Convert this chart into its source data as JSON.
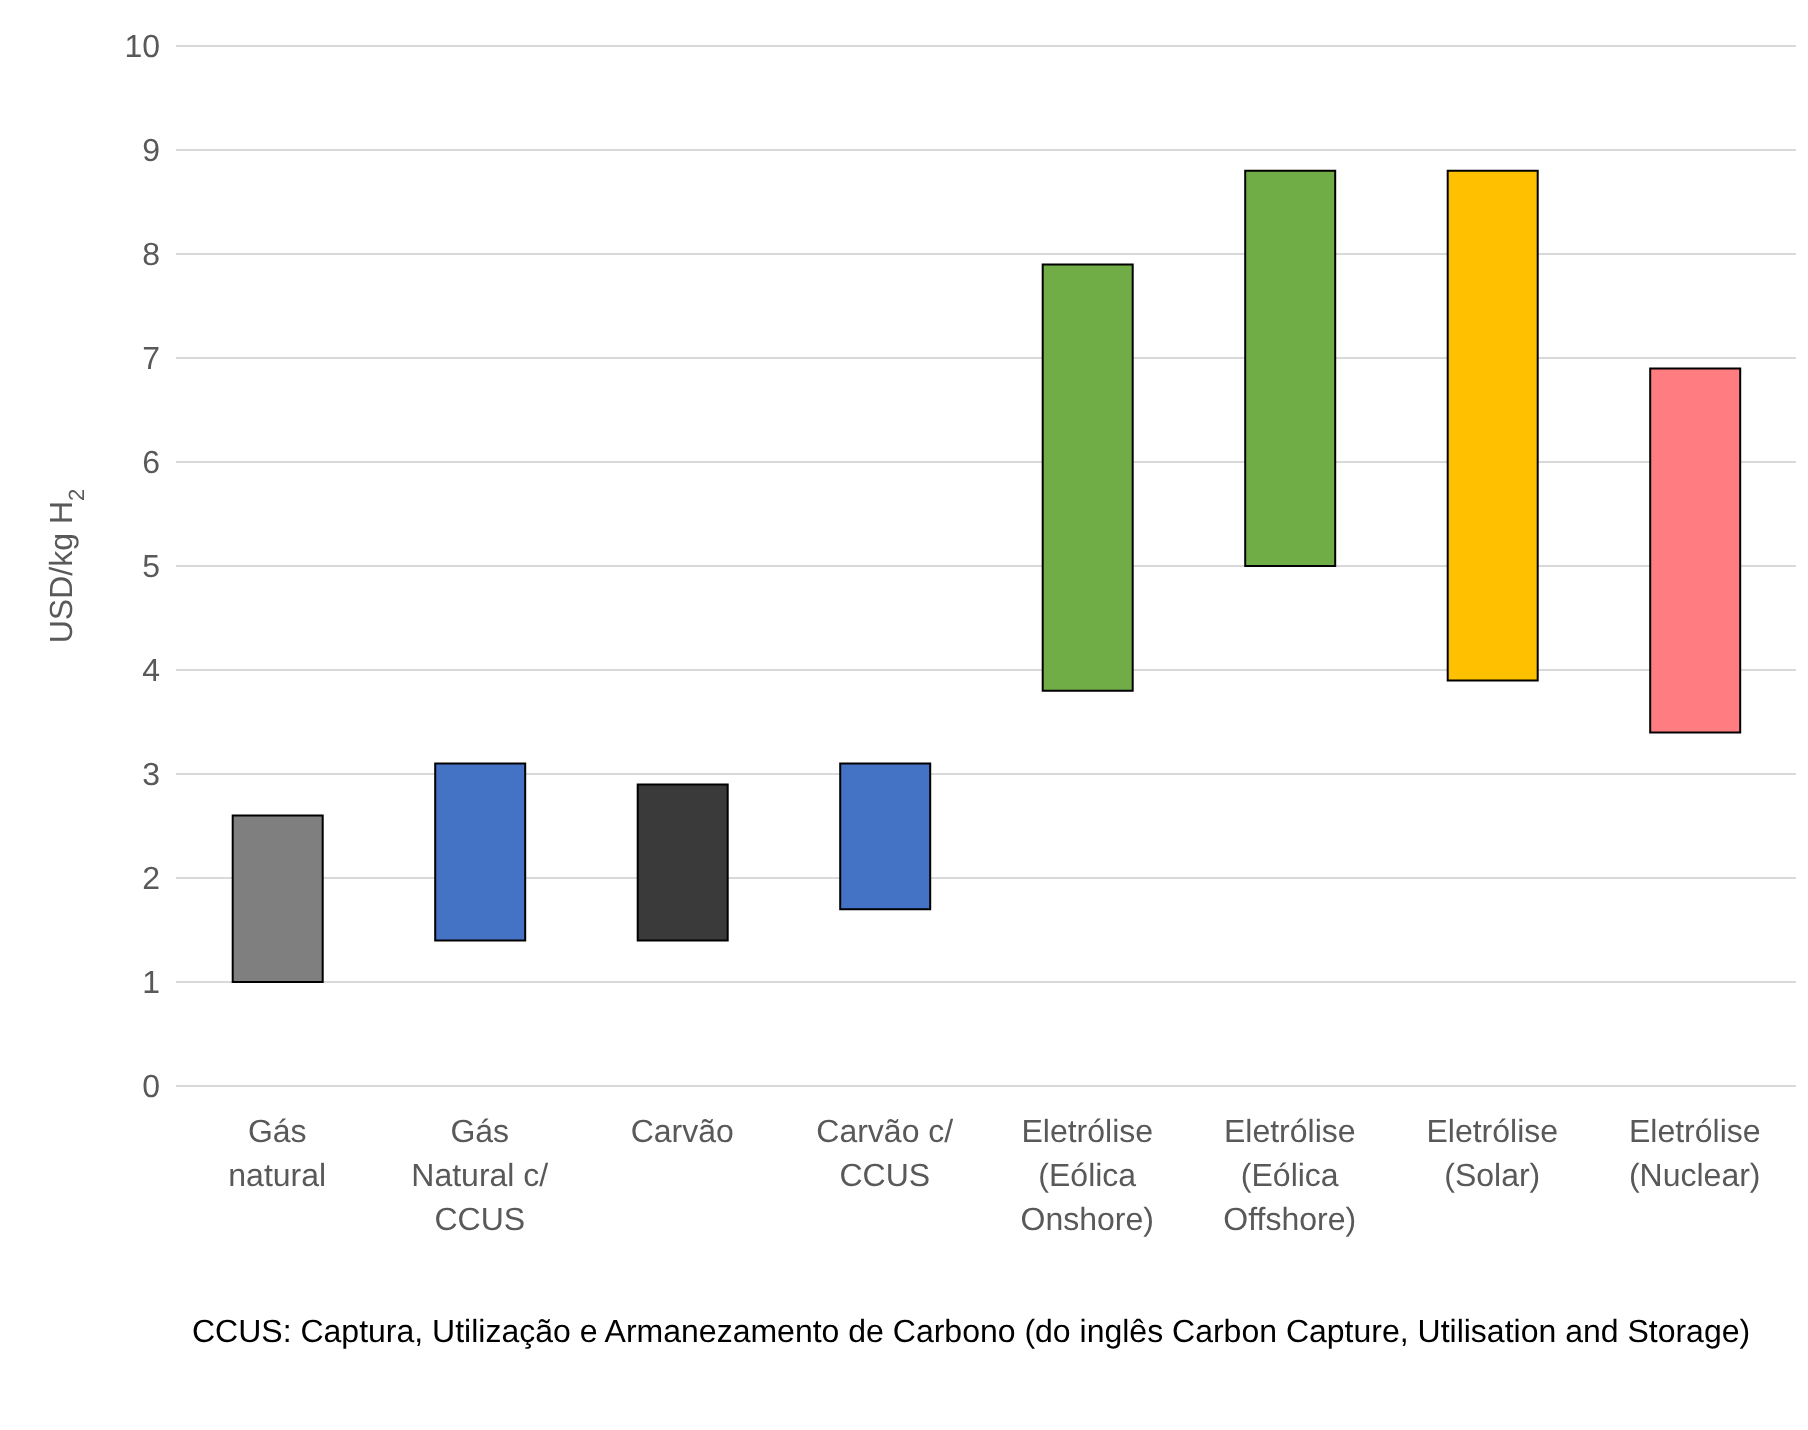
{
  "chart_data": {
    "type": "bar",
    "categories": [
      "Gás natural",
      "Gás Natural c/ CCUS",
      "Carvão",
      "Carvão c/ CCUS",
      "Eletrólise (Eólica Onshore)",
      "Eletrólise (Eólica Offshore)",
      "Eletrólise (Solar)",
      "Eletrólise (Nuclear)"
    ],
    "base": [
      1.0,
      1.4,
      1.4,
      1.7,
      3.8,
      5.0,
      3.9,
      3.4
    ],
    "values": [
      1.6,
      1.7,
      1.5,
      1.4,
      4.1,
      3.8,
      4.9,
      3.5
    ],
    "colors": [
      "#7f7f7f",
      "#4472c4",
      "#3a3a3a",
      "#4472c4",
      "#70ad47",
      "#70ad47",
      "#ffc000",
      "#ff7c80"
    ],
    "ylabel": "USD/kg H$_{2}$",
    "ylim": [
      0,
      10
    ],
    "yticks": [
      0,
      1,
      2,
      3,
      4,
      5,
      6,
      7,
      8,
      9,
      10
    ],
    "grid": "y",
    "legend": false,
    "annotations": [
      "CCUS: Captura, Utilização e Armanezamento de Carbono (do inglês Carbon Capture, Utilisation and Storage)"
    ]
  }
}
